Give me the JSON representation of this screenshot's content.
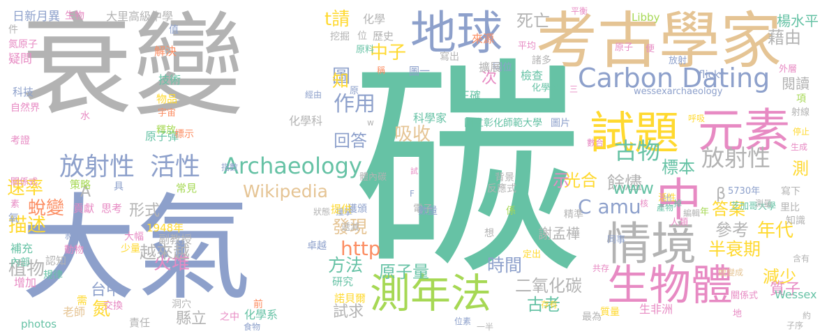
{
  "colors": {
    "background": "#ffffff",
    "gray": "#b3b3b3",
    "teal": "#66c2a5",
    "blue": "#8da0cb",
    "orange": "#fc8d62",
    "pink": "#e78ac3",
    "green": "#a6d854",
    "yellow": "#ffd92f",
    "tan": "#e5c494"
  },
  "words": [
    {
      "text": "碳",
      "color": "teal"
    },
    {
      "text": "衰變",
      "color": "gray"
    },
    {
      "text": "大氣",
      "color": "blue"
    },
    {
      "text": "考古學家",
      "color": "tan"
    },
    {
      "text": "地球",
      "color": "blue"
    },
    {
      "text": "中",
      "color": "pink"
    },
    {
      "text": "元素",
      "color": "pink"
    },
    {
      "text": "試題",
      "color": "yellow"
    },
    {
      "text": "情境",
      "color": "gray"
    },
    {
      "text": "生物體",
      "color": "pink"
    },
    {
      "text": "測年法",
      "color": "green"
    },
    {
      "text": "Carbon Dating",
      "color": "blue"
    },
    {
      "text": "Archaeology",
      "color": "teal"
    },
    {
      "text": "放射性",
      "color": "blue"
    },
    {
      "text": "活性",
      "color": "blue"
    },
    {
      "text": "古物",
      "color": "teal"
    },
    {
      "text": "放射性",
      "color": "gray"
    },
    {
      "text": "Wikipedia",
      "color": "tan"
    },
    {
      "text": "作用",
      "color": "blue"
    },
    {
      "text": "吸收",
      "color": "tan"
    },
    {
      "text": "中子",
      "color": "yellow"
    },
    {
      "text": "t請",
      "color": "yellow"
    },
    {
      "text": "死亡",
      "color": "gray"
    },
    {
      "text": "藉由",
      "color": "gray"
    },
    {
      "text": "標本",
      "color": "teal"
    },
    {
      "text": "答案",
      "color": "yellow"
    },
    {
      "text": "半衰期",
      "color": "yellow"
    },
    {
      "text": "http",
      "color": "orange"
    },
    {
      "text": "C amu",
      "color": "blue"
    },
    {
      "text": "年代",
      "color": "yellow"
    },
    {
      "text": "描述",
      "color": "yellow"
    },
    {
      "text": "火堆",
      "color": "pink"
    },
    {
      "text": "原子量",
      "color": "teal"
    },
    {
      "text": "時間",
      "color": "blue"
    },
    {
      "text": "方法",
      "color": "teal"
    },
    {
      "text": "二氧化碳",
      "color": "gray"
    },
    {
      "text": "古老",
      "color": "teal"
    },
    {
      "text": "發現",
      "color": "tan"
    },
    {
      "text": "參考",
      "color": "gray"
    },
    {
      "text": "減少",
      "color": "yellow"
    },
    {
      "text": "質子",
      "color": "pink"
    },
    {
      "text": "蛻變",
      "color": "orange"
    },
    {
      "text": "速率",
      "color": "yellow"
    },
    {
      "text": "植物",
      "color": "gray"
    },
    {
      "text": "越來越",
      "color": "gray"
    },
    {
      "text": "餘燼",
      "color": "gray"
    },
    {
      "text": "光合",
      "color": "yellow"
    },
    {
      "text": "示",
      "color": "pink"
    },
    {
      "text": "www",
      "color": "teal"
    },
    {
      "text": "形式",
      "color": "gray"
    },
    {
      "text": "回答",
      "color": "blue"
    },
    {
      "text": "圖",
      "color": "blue"
    },
    {
      "text": "知",
      "color": "yellow"
    },
    {
      "text": "次",
      "color": "pink"
    },
    {
      "text": "楊水平",
      "color": "teal"
    },
    {
      "text": "閱讀",
      "color": "gray"
    },
    {
      "text": "氮",
      "color": "yellow"
    },
    {
      "text": "台中",
      "color": "blue"
    },
    {
      "text": "縣立",
      "color": "gray"
    },
    {
      "text": "試求",
      "color": "gray"
    },
    {
      "text": "謝孟樺",
      "color": "gray"
    },
    {
      "text": "測",
      "color": "yellow"
    },
    {
      "text": "β",
      "color": "gray"
    },
    {
      "text": "A",
      "color": "gray"
    },
    {
      "text": "日新月異",
      "color": "blue"
    },
    {
      "text": "生物",
      "color": "pink"
    },
    {
      "text": "大里高級中學",
      "color": "gray"
    },
    {
      "text": "化學",
      "color": "gray"
    },
    {
      "text": "國立彰化師範大學",
      "color": "teal"
    },
    {
      "text": "芝加哥大學",
      "color": "teal"
    },
    {
      "text": "化學科",
      "color": "gray"
    },
    {
      "text": "化學系",
      "color": "teal"
    },
    {
      "text": "科學家",
      "color": "teal"
    },
    {
      "text": "wessexarchaeology",
      "color": "blue"
    },
    {
      "text": "flickr",
      "color": "blue"
    },
    {
      "text": "Libby",
      "color": "green"
    },
    {
      "text": "Wessex",
      "color": "teal"
    },
    {
      "text": "photos",
      "color": "teal"
    },
    {
      "text": "5730年",
      "color": "blue"
    },
    {
      "text": "1948年",
      "color": "yellow"
    },
    {
      "text": "平衡",
      "color": "pink"
    },
    {
      "text": "件",
      "color": "gray"
    },
    {
      "text": "氮原子",
      "color": "pink"
    },
    {
      "text": "疑問",
      "color": "pink"
    },
    {
      "text": "科技",
      "color": "blue"
    },
    {
      "text": "自然界",
      "color": "pink"
    },
    {
      "text": "考證",
      "color": "pink"
    },
    {
      "text": "關係式",
      "color": "pink"
    },
    {
      "text": "素",
      "color": "pink"
    },
    {
      "text": "氧",
      "color": "blue"
    },
    {
      "text": "補充",
      "color": "teal"
    },
    {
      "text": "內部",
      "color": "teal"
    },
    {
      "text": "增加",
      "color": "pink"
    },
    {
      "text": "規律",
      "color": "teal"
    },
    {
      "text": "動物",
      "color": "pink"
    },
    {
      "text": "敘述",
      "color": "blue"
    },
    {
      "text": "大幅",
      "color": "pink"
    },
    {
      "text": "少量",
      "color": "yellow"
    },
    {
      "text": "副教授",
      "color": "gray"
    },
    {
      "text": "認知",
      "color": "gray"
    },
    {
      "text": "老師",
      "color": "tan"
    },
    {
      "text": "責任",
      "color": "gray"
    },
    {
      "text": "交換",
      "color": "pink"
    },
    {
      "text": "需",
      "color": "yellow"
    },
    {
      "text": "之中",
      "color": "pink"
    },
    {
      "text": "洞穴",
      "color": "gray"
    },
    {
      "text": "食物",
      "color": "blue"
    },
    {
      "text": "前",
      "color": "orange"
    },
    {
      "text": "策略",
      "color": "green"
    },
    {
      "text": "貢獻",
      "color": "pink"
    },
    {
      "text": "思考",
      "color": "pink"
    },
    {
      "text": "常見",
      "color": "green"
    },
    {
      "text": "具",
      "color": "blue"
    },
    {
      "text": "解決",
      "color": "orange"
    },
    {
      "text": "技術",
      "color": "teal"
    },
    {
      "text": "物品",
      "color": "yellow"
    },
    {
      "text": "原子彈",
      "color": "teal"
    },
    {
      "text": "釋放",
      "color": "green"
    },
    {
      "text": "標示",
      "color": "orange"
    },
    {
      "text": "宇宙",
      "color": "orange"
    },
    {
      "text": "值",
      "color": "blue"
    },
    {
      "text": "水",
      "color": "pink"
    },
    {
      "text": "挖掘",
      "color": "gray"
    },
    {
      "text": "位",
      "color": "gray"
    },
    {
      "text": "歷史",
      "color": "gray"
    },
    {
      "text": "原料",
      "color": "teal"
    },
    {
      "text": "稱",
      "color": "orange"
    },
    {
      "text": "原",
      "color": "blue"
    },
    {
      "text": "經由",
      "color": "blue"
    },
    {
      "text": "w",
      "color": "gray"
    },
    {
      "text": "來源",
      "color": "orange"
    },
    {
      "text": "寫出",
      "color": "gray"
    },
    {
      "text": "同位",
      "color": "blue"
    },
    {
      "text": "平均",
      "color": "pink"
    },
    {
      "text": "圖一",
      "color": "blue"
    },
    {
      "text": "擴展",
      "color": "gray"
    },
    {
      "text": "諸多",
      "color": "gray"
    },
    {
      "text": "檢查",
      "color": "teal"
    },
    {
      "text": "化學獎",
      "color": "teal"
    },
    {
      "text": "正確",
      "color": "teal"
    },
    {
      "text": "三",
      "color": "pink"
    },
    {
      "text": "圖片",
      "color": "blue"
    },
    {
      "text": "原子",
      "color": "pink"
    },
    {
      "text": "便",
      "color": "pink"
    },
    {
      "text": "放射",
      "color": "blue"
    },
    {
      "text": "外層",
      "color": "pink"
    },
    {
      "text": "項",
      "color": "green"
    },
    {
      "text": "射線",
      "color": "gray"
    },
    {
      "text": "呼吸",
      "color": "yellow"
    },
    {
      "text": "停止",
      "color": "yellow"
    },
    {
      "text": "生成",
      "color": "pink"
    },
    {
      "text": "數合",
      "color": "pink"
    },
    {
      "text": "產物",
      "color": "teal"
    },
    {
      "text": "掉",
      "color": "teal"
    },
    {
      "text": "測量",
      "color": "gray"
    },
    {
      "text": "寫下",
      "color": "gray"
    },
    {
      "text": "里比",
      "color": "gray"
    },
    {
      "text": "知識",
      "color": "gray"
    },
    {
      "text": "活性",
      "color": "yellow"
    },
    {
      "text": "精準",
      "color": "gray"
    },
    {
      "text": "核",
      "color": "pink"
    },
    {
      "text": "出",
      "color": "gray"
    },
    {
      "text": "年",
      "color": "green"
    },
    {
      "text": "人類",
      "color": "pink"
    },
    {
      "text": "編輯",
      "color": "gray"
    },
    {
      "text": "同事",
      "color": "blue"
    },
    {
      "text": "含有",
      "color": "gray"
    },
    {
      "text": "共存",
      "color": "pink"
    },
    {
      "text": "蛻變成",
      "color": "tan"
    },
    {
      "text": "關係式",
      "color": "pink"
    },
    {
      "text": "質量",
      "color": "yellow"
    },
    {
      "text": "最為",
      "color": "gray"
    },
    {
      "text": "生非洲",
      "color": "pink"
    },
    {
      "text": "子序",
      "color": "gray"
    },
    {
      "text": "約",
      "color": "gray"
    },
    {
      "text": "存有",
      "color": "yellow"
    },
    {
      "text": "一半",
      "color": "gray"
    },
    {
      "text": "位素",
      "color": "blue"
    },
    {
      "text": "諾貝爾",
      "color": "yellow"
    },
    {
      "text": "研究",
      "color": "teal"
    },
    {
      "text": "卓越",
      "color": "blue"
    },
    {
      "text": "想",
      "color": "gray"
    },
    {
      "text": "遞減",
      "color": "gray"
    },
    {
      "text": "獲頒",
      "color": "blue"
    },
    {
      "text": "撞擊",
      "color": "blue"
    },
    {
      "text": "狀態",
      "color": "gray"
    },
    {
      "text": "提供",
      "color": "yellow"
    },
    {
      "text": "體內碳",
      "color": "gray"
    },
    {
      "text": "指數",
      "color": "blue"
    },
    {
      "text": "背景",
      "color": "gray"
    },
    {
      "text": "反應式",
      "color": "gray"
    },
    {
      "text": "係",
      "color": "green"
    },
    {
      "text": "試",
      "color": "pink"
    },
    {
      "text": "F",
      "color": "blue"
    },
    {
      "text": "電子",
      "color": "gray"
    },
    {
      "text": "數量",
      "color": "blue"
    },
    {
      "text": "定出",
      "color": "yellow"
    },
    {
      "text": "地",
      "color": "pink"
    }
  ]
}
